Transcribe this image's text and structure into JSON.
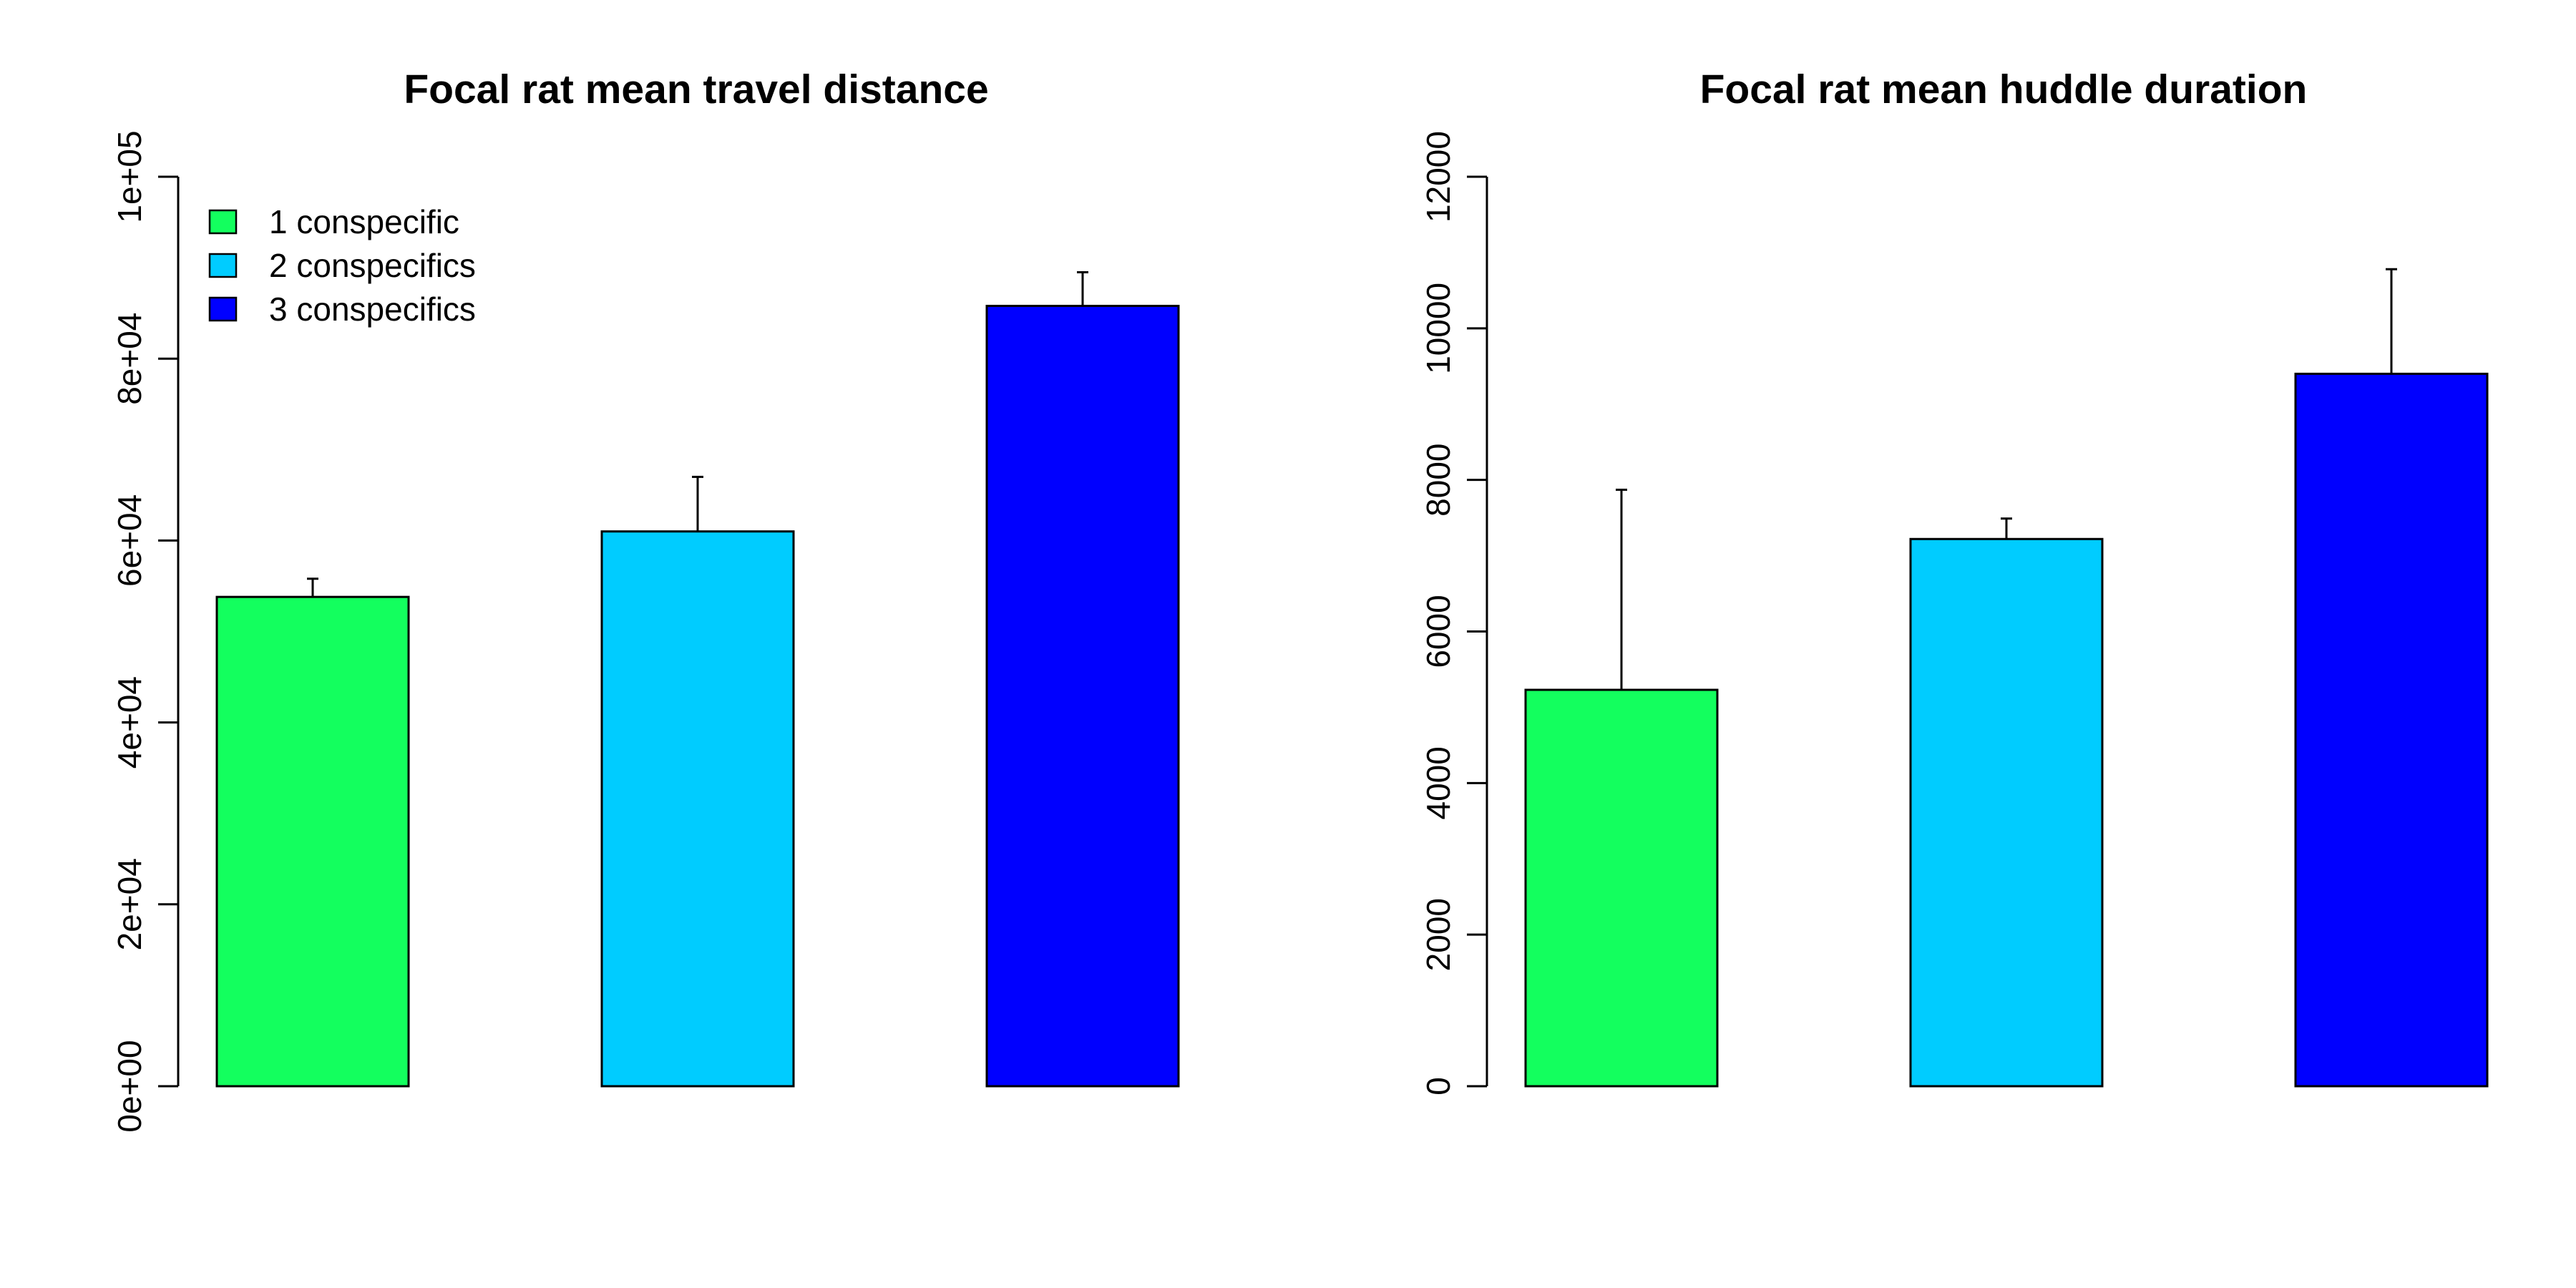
{
  "chart_data": [
    {
      "type": "bar",
      "title": "Focal rat mean travel distance",
      "categories": [
        "1 conspecific",
        "2 conspecifics",
        "3 conspecifics"
      ],
      "values": [
        53800,
        61000,
        85800
      ],
      "error_upper": [
        55800,
        67000,
        89500
      ],
      "colors": [
        "#13ff5e",
        "#00ccff",
        "#0000ff"
      ],
      "ylim": [
        0,
        100000
      ],
      "yticks": [
        0,
        20000,
        40000,
        60000,
        80000,
        100000
      ],
      "ytick_labels": [
        "0e+00",
        "2e+04",
        "4e+04",
        "6e+04",
        "8e+04",
        "1e+05"
      ],
      "xlabel": "",
      "ylabel": "",
      "grid": false,
      "legend": {
        "position": "top-left",
        "entries": [
          "1 conspecific",
          "2 conspecifics",
          "3 conspecifics"
        ]
      }
    },
    {
      "type": "bar",
      "title": "Focal rat mean huddle duration",
      "categories": [
        "1 conspecific",
        "2 conspecifics",
        "3 conspecifics"
      ],
      "values": [
        5230,
        7220,
        9400
      ],
      "error_upper": [
        7870,
        7490,
        10780
      ],
      "colors": [
        "#13ff5e",
        "#00ccff",
        "#0000ff"
      ],
      "ylim": [
        0,
        12000
      ],
      "yticks": [
        0,
        2000,
        4000,
        6000,
        8000,
        10000,
        12000
      ],
      "ytick_labels": [
        "0",
        "2000",
        "4000",
        "6000",
        "8000",
        "10000",
        "12000"
      ],
      "xlabel": "",
      "ylabel": "",
      "grid": false
    }
  ]
}
